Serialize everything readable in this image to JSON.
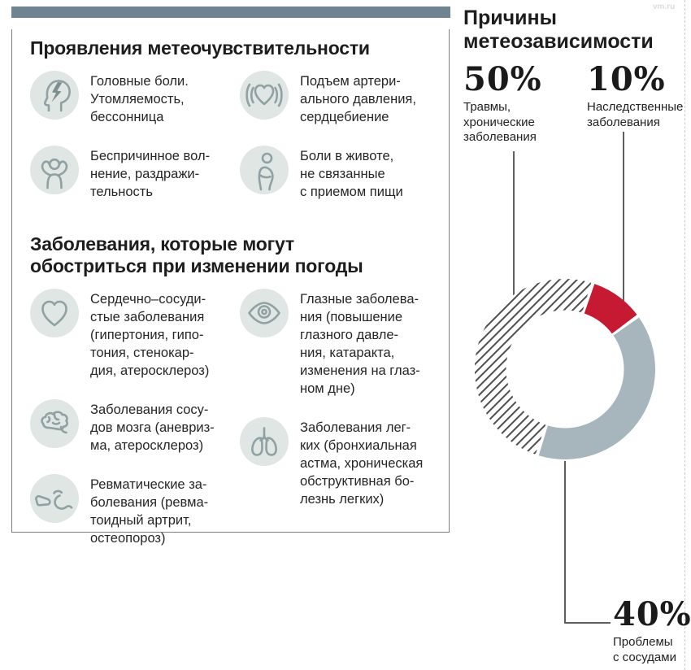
{
  "watermark": "vm.ru",
  "colors": {
    "top_bar": "#6f8490",
    "icon_bg": "#e0e6e4",
    "icon_stroke": "#8fa1a2",
    "accent_red": "#c51a32",
    "donut_gray": "#a7b5bc",
    "hatch_line": "#4d4d4d",
    "text": "#262626"
  },
  "left_panel": {
    "section1": {
      "title": "Проявления метеочувствительности",
      "col_left": [
        {
          "icon": "headache-icon",
          "text": "Головные боли.\nУтомляемость,\nбессонница"
        },
        {
          "icon": "anxiety-icon",
          "text": "Беспричинное вол-\nнение, раздражи-\nтельность"
        }
      ],
      "col_right": [
        {
          "icon": "blood-pressure-icon",
          "text": "Подъем артери-\nального давления,\nсердцебиение"
        },
        {
          "icon": "stomach-pain-icon",
          "text": "Боли в животе,\nне связанные\nс приемом пищи"
        }
      ]
    },
    "section2": {
      "title": "Заболевания, которые могут\nобостриться при изменении погоды",
      "col_left": [
        {
          "icon": "heart-icon",
          "text": "Сердечно–сосуди-\nстые заболевания\n(гипертония, гипо-\nтония, стенокар-\nдия, атеросклероз)"
        },
        {
          "icon": "brain-icon",
          "text": "Заболевания сосу-\nдов мозга (аневриз-\nма, атеросклероз)"
        },
        {
          "icon": "joint-icon",
          "text": "Ревматические за-\nболевания (ревма-\nтоидный артрит,\nостеопороз)"
        }
      ],
      "col_right": [
        {
          "icon": "eye-icon",
          "text": "Глазные заболева-\nния (повышение\nглазного давле-\nния, катаракта,\nизменения на глаз-\nном дне)"
        },
        {
          "icon": "lungs-icon",
          "text": "Заболевания лег-\nких (бронхиальная\nастма, хроническая\nобструктивная бо-\nлезнь легких)"
        }
      ]
    }
  },
  "right_panel": {
    "title": "Причины\nметеозависимости",
    "stats": [
      {
        "value": "50%",
        "label": "Травмы,\nхронические\nзаболевания"
      },
      {
        "value": "10%",
        "label": "Наследственные\nзаболевания"
      },
      {
        "value": "40%",
        "label": "Проблемы\nс сосудами"
      }
    ]
  },
  "chart_data": {
    "type": "donut",
    "title": "Причины метеозависимости",
    "rotation_deg": 18,
    "gap_deg": 2.2,
    "outer_radius": 111,
    "inner_radius": 72.5,
    "segments": [
      {
        "label": "Наследственные заболевания",
        "value": 10,
        "style": "solid",
        "color": "#c51a32"
      },
      {
        "label": "Проблемы с сосудами",
        "value": 40,
        "style": "solid",
        "color": "#a7b5bc"
      },
      {
        "label": "Травмы, хронические заболевания",
        "value": 50,
        "style": "hatched",
        "color": "#4d4d4d"
      }
    ]
  }
}
